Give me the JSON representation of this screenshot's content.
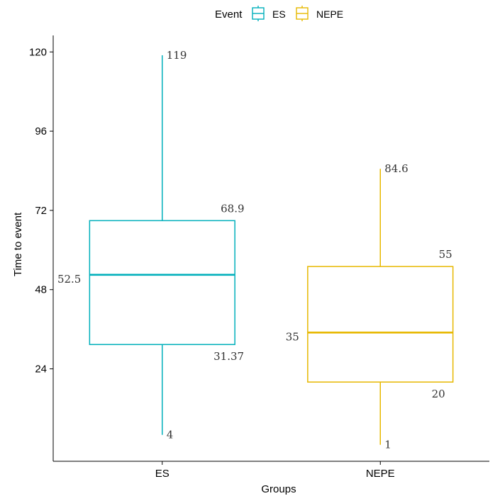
{
  "chart_data": {
    "type": "boxplot",
    "xlabel": "Groups",
    "ylabel": "Time to event",
    "ylim": [
      -4,
      125
    ],
    "yticks": [
      24,
      48,
      72,
      96,
      120
    ],
    "grid": false,
    "legend": {
      "title": "Event",
      "placement": "top",
      "entries": [
        "ES",
        "NEPE"
      ]
    },
    "categories": [
      "ES",
      "NEPE"
    ],
    "boxes": [
      {
        "category": "ES",
        "color": "#00AFBB",
        "min": 4,
        "q1": 31.37,
        "median": 52.5,
        "q3": 68.9,
        "max": 119,
        "labels": {
          "min": "4",
          "q1": "31.37",
          "median": "52.5",
          "q3": "68.9",
          "max": "119"
        }
      },
      {
        "category": "NEPE",
        "color": "#E7B800",
        "min": 1,
        "q1": 20,
        "median": 35,
        "q3": 55,
        "max": 84.6,
        "labels": {
          "min": "1",
          "q1": "20",
          "median": "35",
          "q3": "55",
          "max": "84.6"
        }
      }
    ]
  }
}
